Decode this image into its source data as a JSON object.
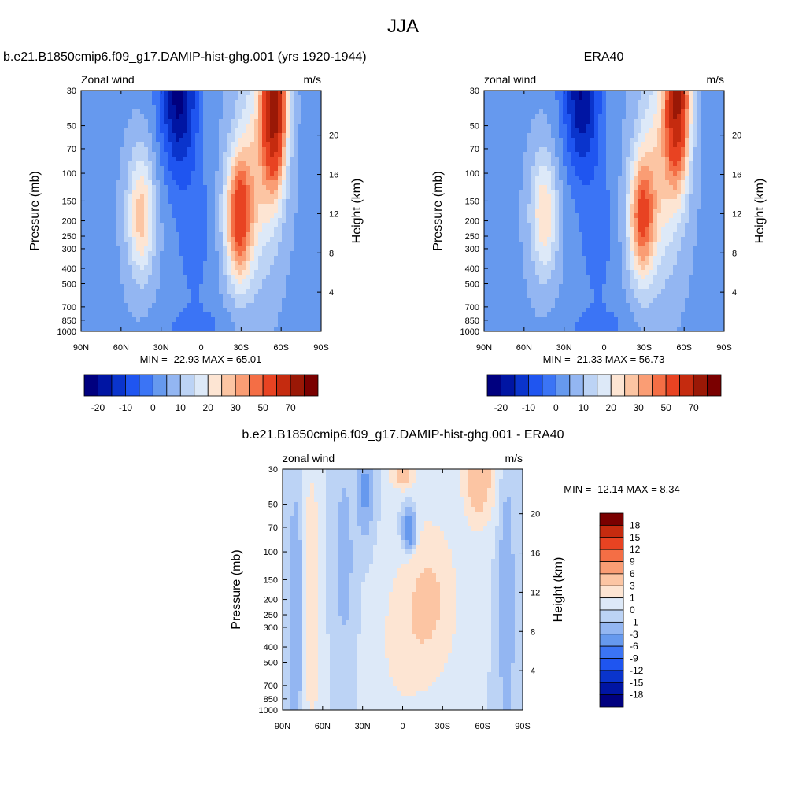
{
  "title": "JJA",
  "colors": {
    "blue_to_red": [
      "#00007f",
      "#0015a3",
      "#0a34cc",
      "#1f55f0",
      "#3b74f5",
      "#6699ee",
      "#93b6f2",
      "#bcd3f5",
      "#dde9f8",
      "#fde5d3",
      "#fcc5a3",
      "#fa9d74",
      "#f46e45",
      "#e84322",
      "#c52b0f",
      "#9a1806",
      "#7a0000"
    ],
    "diff": [
      "#00007f",
      "#0015a3",
      "#0a34cc",
      "#1f55f0",
      "#3b74f5",
      "#6699ee",
      "#93b6f2",
      "#bcd3f5",
      "#dde9f8",
      "#fde5d3",
      "#fcc5a3",
      "#fa9d74",
      "#f46e45",
      "#e84322",
      "#c52b0f",
      "#7a0000"
    ]
  },
  "chart_data": [
    {
      "type": "heatmap",
      "title": "b.e21.B1850cmip6.f09_g17.DAMIP-hist-ghg.001 (yrs 1920-1944)",
      "variable_label": "Zonal wind",
      "units": "m/s",
      "ylabel": "Pressure (mb)",
      "ylabel_right": "Height (km)",
      "x_ticks": [
        "90N",
        "60N",
        "30N",
        "0",
        "30S",
        "60S",
        "90S"
      ],
      "y_ticks": [
        "30",
        "50",
        "70",
        "100",
        "150",
        "200",
        "250",
        "300",
        "400",
        "500",
        "700",
        "850",
        "1000"
      ],
      "y_ticks_right": [
        "20",
        "16",
        "12",
        "8",
        "4"
      ],
      "stats": "MIN = -22.93  MAX =  65.01",
      "colorbar_labels": [
        "-20",
        "-10",
        "0",
        "10",
        "20",
        "30",
        "50",
        "70"
      ],
      "min": -22.93,
      "max": 65.01,
      "features": [
        {
          "lat": 17,
          "p": 30,
          "u": -22
        },
        {
          "lat": -55,
          "p": 30,
          "u": 65
        },
        {
          "lat": -28,
          "p": 200,
          "u": 38
        },
        {
          "lat": 45,
          "p": 200,
          "u": 22
        }
      ]
    },
    {
      "type": "heatmap",
      "title": "ERA40",
      "variable_label": "zonal wind",
      "units": "m/s",
      "ylabel": "Pressure (mb)",
      "ylabel_right": "Height (km)",
      "x_ticks": [
        "90N",
        "60N",
        "30N",
        "0",
        "30S",
        "60S",
        "90S"
      ],
      "y_ticks": [
        "30",
        "50",
        "70",
        "100",
        "150",
        "200",
        "250",
        "300",
        "400",
        "500",
        "700",
        "850",
        "1000"
      ],
      "y_ticks_right": [
        "20",
        "16",
        "12",
        "8",
        "4"
      ],
      "stats": "MIN = -21.33  MAX =  56.73",
      "colorbar_labels": [
        "-20",
        "-10",
        "0",
        "10",
        "20",
        "30",
        "50",
        "70"
      ],
      "min": -21.33,
      "max": 56.73,
      "features": [
        {
          "lat": 17,
          "p": 30,
          "u": -21
        },
        {
          "lat": -58,
          "p": 30,
          "u": 57
        },
        {
          "lat": -30,
          "p": 200,
          "u": 34
        },
        {
          "lat": 45,
          "p": 200,
          "u": 20
        }
      ]
    },
    {
      "type": "heatmap",
      "title": "b.e21.B1850cmip6.f09_g17.DAMIP-hist-ghg.001 - ERA40",
      "variable_label": "zonal wind",
      "units": "m/s",
      "ylabel": "Pressure (mb)",
      "ylabel_right": "Height (km)",
      "x_ticks": [
        "90N",
        "60N",
        "30N",
        "0",
        "30S",
        "60S",
        "90S"
      ],
      "y_ticks": [
        "30",
        "50",
        "70",
        "100",
        "150",
        "200",
        "250",
        "300",
        "400",
        "500",
        "700",
        "850",
        "1000"
      ],
      "y_ticks_right": [
        "20",
        "16",
        "12",
        "8",
        "4"
      ],
      "stats": "MIN = -12.14  MAX =   8.34",
      "colorbar_labels": [
        "18",
        "15",
        "12",
        "9",
        "6",
        "3",
        "1",
        "0",
        "-1",
        "-3",
        "-6",
        "-9",
        "-12",
        "-15",
        "-18"
      ],
      "min": -12.14,
      "max": 8.34
    }
  ]
}
